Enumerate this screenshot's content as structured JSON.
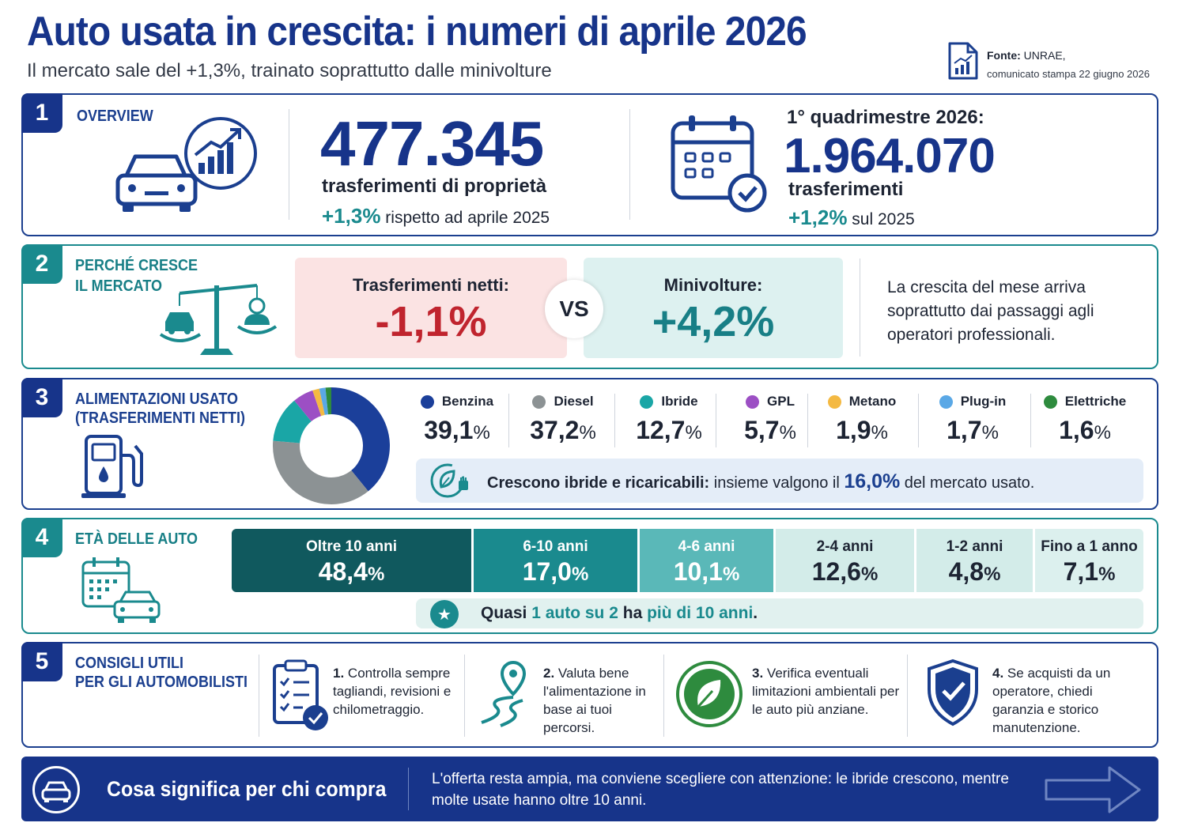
{
  "header": {
    "title": "Auto usata in crescita: i numeri di aprile 2026",
    "subtitle": "Il mercato sale del +1,3%, trainato soprattutto dalle minivolture",
    "source_label": "Fonte:",
    "source_name": "UNRAE,",
    "source_detail": "comunicato stampa 22 giugno 2026"
  },
  "overview": {
    "number": "1",
    "title": "OVERVIEW",
    "main_value": "477.345",
    "main_label": "trasferimenti di proprietà",
    "main_delta": "+1,3%",
    "main_delta_text": "rispetto ad aprile 2025",
    "q_title": "1° quadrimestre 2026:",
    "q_value": "1.964.070",
    "q_label": "trasferimenti",
    "q_delta": "+1,2%",
    "q_delta_text": "sul 2025"
  },
  "growth": {
    "number": "2",
    "title_line1": "PERCHÉ CRESCE",
    "title_line2": "IL MERCATO",
    "left_label": "Trasferimenti netti:",
    "left_value": "-1,1%",
    "vs": "VS",
    "right_label": "Minivolture:",
    "right_value": "+4,2%",
    "explanation": "La crescita del mese arriva soprattutto dai passaggi agli operatori professionali."
  },
  "fuel": {
    "number": "3",
    "title_line1": "ALIMENTAZIONI USATO",
    "title_line2": "(TRASFERIMENTI NETTI)",
    "items": [
      {
        "name": "Benzina",
        "value": "39,1",
        "unit": "%",
        "color": "#1b3f9a"
      },
      {
        "name": "Diesel",
        "value": "37,2",
        "unit": "%",
        "color": "#8c9294"
      },
      {
        "name": "Ibride",
        "value": "12,7",
        "unit": "%",
        "color": "#1aa6a6"
      },
      {
        "name": "GPL",
        "value": "5,7",
        "unit": "%",
        "color": "#9c4fc4"
      },
      {
        "name": "Metano",
        "value": "1,9",
        "unit": "%",
        "color": "#f4b942"
      },
      {
        "name": "Plug-in",
        "value": "1,7",
        "unit": "%",
        "color": "#5aa8e6"
      },
      {
        "name": "Elettriche",
        "value": "1,6",
        "unit": "%",
        "color": "#2e8b3e"
      }
    ],
    "note_bold": "Crescono ibride e ricaricabili:",
    "note_pre": "insieme valgono il",
    "note_value": "16,0%",
    "note_post": "del mercato usato."
  },
  "chart_data": {
    "type": "pie",
    "categories": [
      "Benzina",
      "Diesel",
      "Ibride",
      "GPL",
      "Metano",
      "Plug-in",
      "Elettriche"
    ],
    "values": [
      39.1,
      37.2,
      12.7,
      5.7,
      1.9,
      1.7,
      1.6
    ],
    "colors": [
      "#1b3f9a",
      "#8c9294",
      "#1aa6a6",
      "#9c4fc4",
      "#f4b942",
      "#5aa8e6",
      "#2e8b3e"
    ]
  },
  "age": {
    "number": "4",
    "title": "ETÀ DELLE AUTO",
    "segments": [
      {
        "label": "Oltre 10 anni",
        "value": "48,4",
        "unit": "%"
      },
      {
        "label": "6-10 anni",
        "value": "17,0",
        "unit": "%"
      },
      {
        "label": "4-6 anni",
        "value": "10,1",
        "unit": "%"
      },
      {
        "label": "2-4 anni",
        "value": "12,6",
        "unit": "%"
      },
      {
        "label": "1-2 anni",
        "value": "4,8",
        "unit": "%"
      },
      {
        "label": "Fino a 1 anno",
        "value": "7,1",
        "unit": "%"
      }
    ],
    "note_pre": "Quasi",
    "note_hl1": "1 auto su 2",
    "note_mid": "ha",
    "note_hl2": "più di 10 anni",
    "note_post": "."
  },
  "tips": {
    "number": "5",
    "title_line1": "CONSIGLI UTILI",
    "title_line2": "PER GLI AUTOMOBILISTI",
    "items": [
      {
        "num": "1.",
        "text": "Controlla sempre tagliandi, revisioni e chilometraggio."
      },
      {
        "num": "2.",
        "text": "Valuta bene l'alimentazione in base ai tuoi percorsi."
      },
      {
        "num": "3.",
        "text": "Verifica eventuali limitazioni ambientali per le auto più anziane."
      },
      {
        "num": "4.",
        "text": "Se acquisti da un operatore, chiedi garanzia e storico manutenzione."
      }
    ]
  },
  "footer": {
    "title": "Cosa significa per chi compra",
    "text": "L'offerta resta ampia, ma conviene scegliere con attenzione: le ibride crescono, mentre molte usate hanno oltre 10 anni."
  }
}
